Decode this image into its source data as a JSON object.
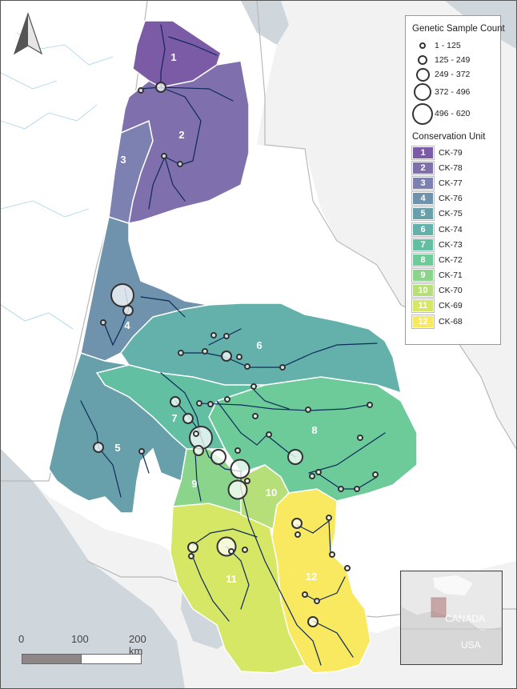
{
  "legend": {
    "sample_title": "Genetic Sample Count",
    "sizes": [
      {
        "label": "1 - 125",
        "class_index": 1
      },
      {
        "label": "125 - 249",
        "class_index": 2
      },
      {
        "label": "249 - 372",
        "class_index": 3
      },
      {
        "label": "372 - 496",
        "class_index": 4
      },
      {
        "label": "496 - 620",
        "class_index": 5
      }
    ],
    "cu_title": "Conservation Unit",
    "units": [
      {
        "num": "1",
        "label": "CK-79",
        "color": "#7b5aa6"
      },
      {
        "num": "2",
        "label": "CK-78",
        "color": "#7f6fac"
      },
      {
        "num": "3",
        "label": "CK-77",
        "color": "#7c81b1"
      },
      {
        "num": "4",
        "label": "CK-76",
        "color": "#6f92ad"
      },
      {
        "num": "5",
        "label": "CK-75",
        "color": "#67a0aa"
      },
      {
        "num": "6",
        "label": "CK-74",
        "color": "#64b0aa"
      },
      {
        "num": "7",
        "label": "CK-73",
        "color": "#62bfa2"
      },
      {
        "num": "8",
        "label": "CK-72",
        "color": "#6ccb99"
      },
      {
        "num": "9",
        "label": "CK-71",
        "color": "#8bd48c"
      },
      {
        "num": "10",
        "label": "CK-70",
        "color": "#b6df79"
      },
      {
        "num": "11",
        "label": "CK-69",
        "color": "#d6e766"
      },
      {
        "num": "12",
        "label": "CK-68",
        "color": "#f8e961"
      }
    ]
  },
  "region_labels": [
    "1",
    "2",
    "3",
    "4",
    "5",
    "6",
    "7",
    "8",
    "9",
    "10",
    "11",
    "12"
  ],
  "inset": {
    "canada_label": "CANADA",
    "usa_label": "USA"
  },
  "scale": {
    "ticks": [
      "0",
      "100",
      "200 km"
    ]
  },
  "icons": {
    "north_arrow": "north-arrow-icon"
  },
  "colors": {
    "land": "#f2f2f2",
    "water": "#cfd6dc",
    "border": "#b9b9b9",
    "river": "#0d2a5c",
    "outline": "#ffffff"
  }
}
